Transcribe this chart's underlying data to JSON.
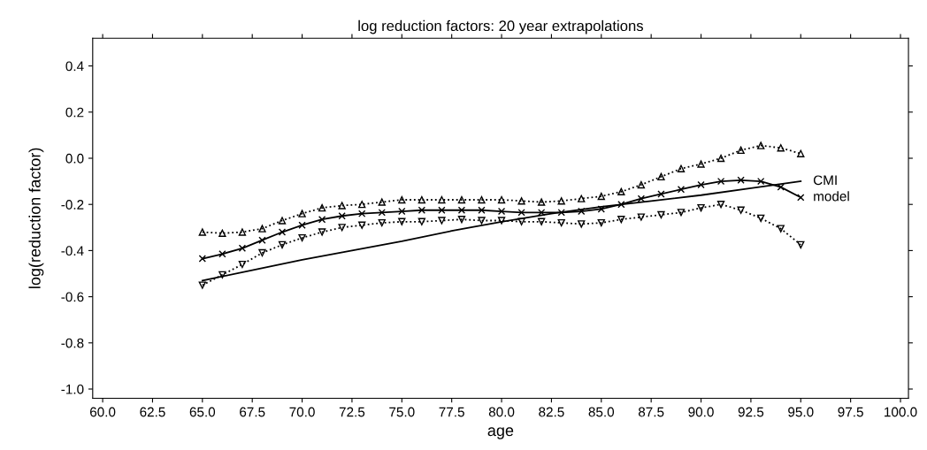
{
  "chart_data": {
    "type": "line",
    "title": "log reduction factors: 20 year extrapolations",
    "xlabel": "age",
    "ylabel": "log(reduction factor)",
    "xlim": [
      59.5,
      100.4
    ],
    "ylim": [
      -1.04,
      0.52
    ],
    "xticks": [
      {
        "value": 60,
        "label": "60.0"
      },
      {
        "value": 62.5,
        "label": "62.5"
      },
      {
        "value": 65,
        "label": "65.0"
      },
      {
        "value": 67.5,
        "label": "67.5"
      },
      {
        "value": 70,
        "label": "70.0"
      },
      {
        "value": 72.5,
        "label": "72.5"
      },
      {
        "value": 75,
        "label": "75.0"
      },
      {
        "value": 77.5,
        "label": "77.5"
      },
      {
        "value": 80,
        "label": "80.0"
      },
      {
        "value": 82.5,
        "label": "82.5"
      },
      {
        "value": 85,
        "label": "85.0"
      },
      {
        "value": 87.5,
        "label": "87.5"
      },
      {
        "value": 90,
        "label": "90.0"
      },
      {
        "value": 92.5,
        "label": "92.5"
      },
      {
        "value": 95,
        "label": "95.0"
      },
      {
        "value": 97.5,
        "label": "97.5"
      },
      {
        "value": 100,
        "label": "100.0"
      }
    ],
    "yticks": [
      {
        "value": -1.0,
        "label": "-1.0"
      },
      {
        "value": -0.8,
        "label": "-0.8"
      },
      {
        "value": -0.6,
        "label": "-0.6"
      },
      {
        "value": -0.4,
        "label": "-0.4"
      },
      {
        "value": -0.2,
        "label": "-0.2"
      },
      {
        "value": 0,
        "label": "0.0"
      },
      {
        "value": 0.2,
        "label": "0.2"
      },
      {
        "value": 0.4,
        "label": "0.4"
      }
    ],
    "grid": false,
    "legend": false,
    "x": [
      65,
      66,
      67,
      68,
      69,
      70,
      71,
      72,
      73,
      74,
      75,
      76,
      77,
      78,
      79,
      80,
      81,
      82,
      83,
      84,
      85,
      86,
      87,
      88,
      89,
      90,
      91,
      92,
      93,
      94,
      95
    ],
    "series": [
      {
        "color": "#000000",
        "marker": "triangle",
        "line_style": "dotted",
        "values": [
          -0.32,
          -0.325,
          -0.32,
          -0.305,
          -0.27,
          -0.24,
          -0.215,
          -0.205,
          -0.2,
          -0.19,
          -0.18,
          -0.18,
          -0.18,
          -0.18,
          -0.18,
          -0.18,
          -0.185,
          -0.19,
          -0.185,
          -0.175,
          -0.165,
          -0.145,
          -0.115,
          -0.08,
          -0.045,
          -0.025,
          0.0,
          0.035,
          0.055,
          0.045,
          0.02
        ]
      },
      {
        "name": "model",
        "color": "#000000",
        "marker": "cross",
        "line_style": "solid",
        "values": [
          -0.435,
          -0.415,
          -0.39,
          -0.355,
          -0.32,
          -0.29,
          -0.265,
          -0.25,
          -0.24,
          -0.235,
          -0.23,
          -0.225,
          -0.225,
          -0.225,
          -0.225,
          -0.23,
          -0.235,
          -0.235,
          -0.235,
          -0.23,
          -0.22,
          -0.2,
          -0.175,
          -0.155,
          -0.135,
          -0.115,
          -0.1,
          -0.095,
          -0.1,
          -0.125,
          -0.17
        ]
      },
      {
        "color": "#000000",
        "marker": "triangle_down",
        "line_style": "dotted",
        "values": [
          -0.55,
          -0.505,
          -0.46,
          -0.41,
          -0.375,
          -0.345,
          -0.32,
          -0.3,
          -0.29,
          -0.28,
          -0.275,
          -0.275,
          -0.27,
          -0.265,
          -0.27,
          -0.27,
          -0.275,
          -0.275,
          -0.28,
          -0.285,
          -0.28,
          -0.265,
          -0.255,
          -0.245,
          -0.235,
          -0.215,
          -0.2,
          -0.225,
          -0.26,
          -0.305,
          -0.375
        ]
      },
      {
        "name": "CMI",
        "color": "#000000",
        "marker": "none",
        "line_style": "solid",
        "x": [
          65,
          67.5,
          70,
          72.5,
          75,
          77.5,
          80,
          82.5,
          85,
          87.5,
          90,
          92.5,
          95
        ],
        "values": [
          -0.53,
          -0.485,
          -0.44,
          -0.4,
          -0.36,
          -0.315,
          -0.275,
          -0.24,
          -0.21,
          -0.185,
          -0.16,
          -0.13,
          -0.1
        ]
      }
    ]
  }
}
